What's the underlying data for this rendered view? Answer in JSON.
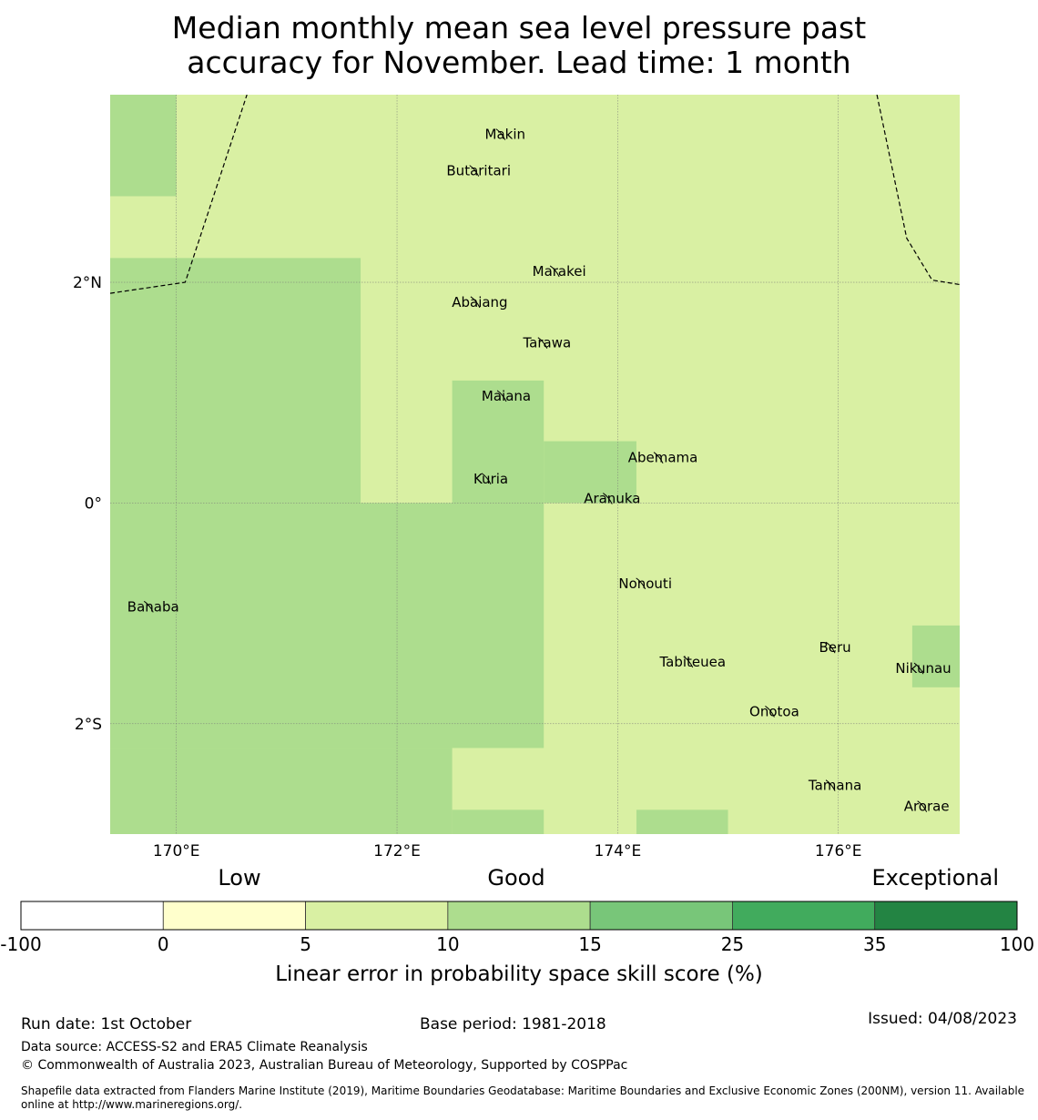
{
  "title": {
    "line1": "Median monthly mean sea level pressure past",
    "line2": "accuracy for November. Lead time: 1 month"
  },
  "map": {
    "lon_range": [
      169.4,
      177.1
    ],
    "lat_range": [
      -3.0,
      3.7
    ],
    "lon_ticks": [
      {
        "value": 170,
        "label": "170°E"
      },
      {
        "value": 172,
        "label": "172°E"
      },
      {
        "value": 174,
        "label": "174°E"
      },
      {
        "value": 176,
        "label": "176°E"
      }
    ],
    "lat_ticks": [
      {
        "value": 2,
        "label": "2°N"
      },
      {
        "value": 0,
        "label": "0°"
      },
      {
        "value": -2,
        "label": "2°S"
      }
    ],
    "base_category": "5-10",
    "cells": [
      {
        "lon": [
          169.4,
          170.0
        ],
        "lat": [
          2.78,
          3.7
        ],
        "category": "10-15"
      },
      {
        "lon": [
          169.4,
          171.67
        ],
        "lat": [
          0.0,
          2.22
        ],
        "category": "10-15"
      },
      {
        "lon": [
          169.4,
          173.33
        ],
        "lat": [
          -2.22,
          0.0
        ],
        "category": "10-15"
      },
      {
        "lon": [
          169.4,
          172.5
        ],
        "lat": [
          -3.0,
          -2.22
        ],
        "category": "10-15"
      },
      {
        "lon": [
          172.5,
          173.33
        ],
        "lat": [
          -3.0,
          -2.78
        ],
        "category": "10-15"
      },
      {
        "lon": [
          172.5,
          173.33
        ],
        "lat": [
          0.0,
          1.11
        ],
        "category": "10-15"
      },
      {
        "lon": [
          173.33,
          174.17
        ],
        "lat": [
          0.0,
          0.56
        ],
        "category": "10-15"
      },
      {
        "lon": [
          174.17,
          175.0
        ],
        "lat": [
          -3.0,
          -2.78
        ],
        "category": "10-15"
      },
      {
        "lon": [
          176.67,
          177.1
        ],
        "lat": [
          -1.67,
          -1.11
        ],
        "category": "10-15"
      }
    ],
    "eez_boundaries": [
      [
        [
          169.4,
          1.9
        ],
        [
          170.08,
          2.0
        ],
        [
          170.64,
          3.7
        ]
      ],
      [
        [
          176.35,
          3.7
        ],
        [
          176.62,
          2.4
        ],
        [
          176.85,
          2.02
        ],
        [
          177.1,
          1.98
        ]
      ]
    ],
    "islands": [
      {
        "name": "Makin",
        "lon": 172.98,
        "lat": 3.34
      },
      {
        "name": "Butaritari",
        "lon": 172.74,
        "lat": 3.01
      },
      {
        "name": "Marakei",
        "lon": 173.47,
        "lat": 2.1
      },
      {
        "name": "Abaiang",
        "lon": 172.75,
        "lat": 1.82
      },
      {
        "name": "Tarawa",
        "lon": 173.36,
        "lat": 1.45
      },
      {
        "name": "Maiana",
        "lon": 172.99,
        "lat": 0.97
      },
      {
        "name": "Abemama",
        "lon": 174.41,
        "lat": 0.41
      },
      {
        "name": "Kuria",
        "lon": 172.85,
        "lat": 0.22
      },
      {
        "name": "Aranuka",
        "lon": 173.95,
        "lat": 0.04
      },
      {
        "name": "Banaba",
        "lon": 169.79,
        "lat": -0.94
      },
      {
        "name": "Nonouti",
        "lon": 174.25,
        "lat": -0.73
      },
      {
        "name": "Beru",
        "lon": 175.97,
        "lat": -1.31
      },
      {
        "name": "Tabiteuea",
        "lon": 174.68,
        "lat": -1.44
      },
      {
        "name": "Nikunau",
        "lon": 176.77,
        "lat": -1.5
      },
      {
        "name": "Onotoa",
        "lon": 175.42,
        "lat": -1.89
      },
      {
        "name": "Tamana",
        "lon": 175.97,
        "lat": -2.56
      },
      {
        "name": "Arorae",
        "lon": 176.8,
        "lat": -2.75
      }
    ]
  },
  "legend": {
    "categories": [
      {
        "id": "-100-0",
        "color": "#ffffff"
      },
      {
        "id": "0-5",
        "color": "#ffffcc"
      },
      {
        "id": "5-10",
        "color": "#d9f0a3"
      },
      {
        "id": "10-15",
        "color": "#addd8e"
      },
      {
        "id": "15-25",
        "color": "#78c679"
      },
      {
        "id": "25-35",
        "color": "#41ab5d"
      },
      {
        "id": "35-100",
        "color": "#238443"
      }
    ],
    "tick_labels": [
      "-100",
      "0",
      "5",
      "10",
      "15",
      "25",
      "35",
      "100"
    ],
    "quality_labels": [
      "Low",
      "Good",
      "Exceptional"
    ],
    "axis_label": "Linear error in probability space skill score (%)"
  },
  "footer": {
    "run_date": "Run date: 1st October",
    "base_period": "Base period: 1981-2018",
    "issued": "Issued: 04/08/2023",
    "data_source": "Data source: ACCESS-S2 and ERA5 Climate Reanalysis",
    "copyright": "© Commonwealth of Australia 2023, Australian Bureau of Meteorology, Supported by COSPPac",
    "shapefile_line1": "Shapefile data extracted from Flanders Marine Institute (2019), Maritime Boundaries Geodatabase: Maritime Boundaries and Exclusive Economic Zones (200NM), version 11. Available",
    "shapefile_line2": "online at http://www.marineregions.org/."
  }
}
